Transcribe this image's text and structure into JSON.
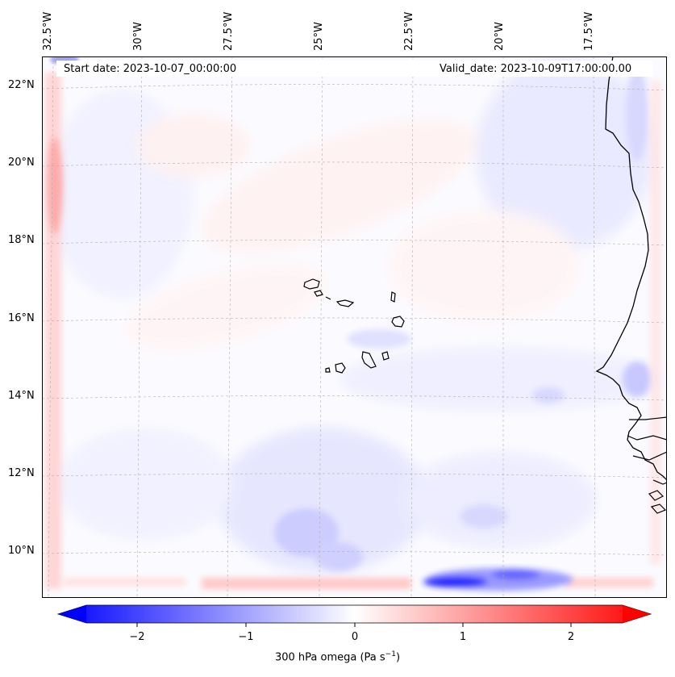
{
  "map": {
    "start_label": "Start date: 2023-10-07_00:00:00",
    "valid_label": "Valid_date: 2023-10-09T17:00:00.00",
    "lon_labels": [
      "32.5°W",
      "30°W",
      "27.5°W",
      "25°W",
      "22.5°W",
      "20°W",
      "17.5°W"
    ],
    "lat_labels": [
      "22°N",
      "20°N",
      "18°N",
      "16°N",
      "14°N",
      "12°N",
      "10°N"
    ],
    "field_colors": {
      "positive": "#ff0000",
      "negative": "#0000ff",
      "zero": "#ffffff"
    },
    "coastline_color": "#000000",
    "gridlines": true
  },
  "colorbar": {
    "ticks": [
      "−2",
      "−1",
      "0",
      "1",
      "2"
    ],
    "label": "300 hPa omega (Pa s",
    "label_sup": "−1",
    "label_end": ")",
    "range": [
      -2.6,
      2.6
    ],
    "extend": "both",
    "colormap": "bwr"
  }
}
